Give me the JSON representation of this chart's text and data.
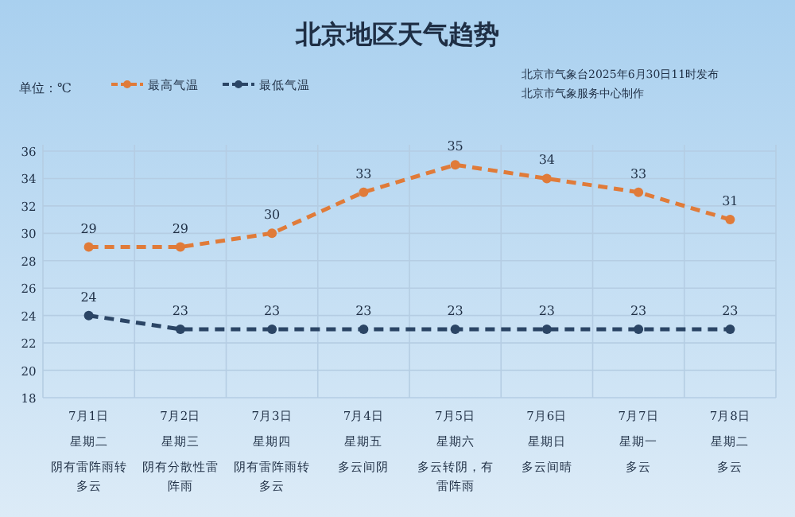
{
  "chart_data": {
    "type": "line",
    "title": "北京地区天气趋势",
    "annotations": [
      "单位：℃",
      "北京市气象台2025年6月30日11时发布",
      "北京市气象服务中心制作",
      "星期二",
      "星期三",
      "星期四",
      "星期五",
      "星期六",
      "星期日",
      "星期一",
      "星期二",
      "阴有雷阵雨转多云",
      "阴有分散性雷阵雨",
      "阴有雷阵雨转多云",
      "多云间阴",
      "多云转阴，有雷阵雨",
      "多云间晴",
      "多云",
      "多云"
    ],
    "categories": [
      "7月1日",
      "7月2日",
      "7月3日",
      "7月4日",
      "7月5日",
      "7月6日",
      "7月7日",
      "7月8日"
    ],
    "series": [
      {
        "name": "最高气温",
        "color": "#e07b39",
        "values": [
          29,
          29,
          30,
          33,
          35,
          34,
          33,
          31
        ]
      },
      {
        "name": "最低气温",
        "color": "#2b4565",
        "values": [
          24,
          23,
          23,
          23,
          23,
          23,
          23,
          23
        ]
      }
    ],
    "ylim": [
      18,
      36
    ],
    "yticks": [
      18,
      20,
      22,
      24,
      26,
      28,
      30,
      32,
      34,
      36
    ],
    "grid": true,
    "legend": "top left",
    "marker": "circle",
    "line_style": "dashed",
    "data_labels": true
  }
}
